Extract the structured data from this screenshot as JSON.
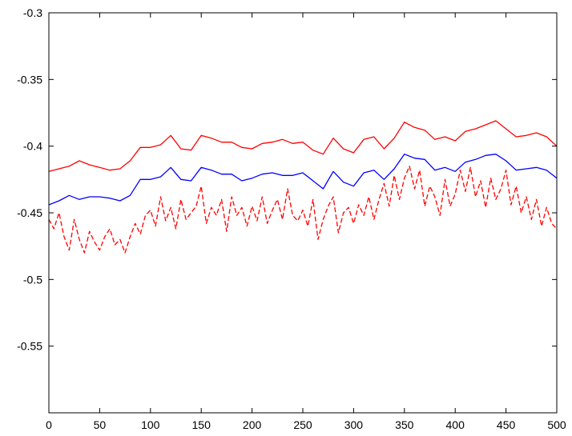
{
  "chart_data": {
    "type": "line",
    "title": "",
    "xlabel": "",
    "ylabel": "",
    "xlim": [
      0,
      500
    ],
    "ylim": [
      -0.6,
      -0.3
    ],
    "x_ticks": [
      0,
      50,
      100,
      150,
      200,
      250,
      300,
      350,
      400,
      450,
      500
    ],
    "y_ticks": [
      -0.3,
      -0.35,
      -0.4,
      -0.45,
      -0.5,
      -0.55
    ],
    "x_tick_labels": [
      "0",
      "50",
      "100",
      "150",
      "200",
      "250",
      "300",
      "350",
      "400",
      "450",
      "500"
    ],
    "y_tick_labels": [
      "-0.3",
      "-0.35",
      "-0.4",
      "-0.45",
      "-0.5",
      "-0.55"
    ],
    "grid": false,
    "series": [
      {
        "color": "#ff0000",
        "style": "solid",
        "x": [
          0,
          10,
          20,
          30,
          40,
          50,
          60,
          70,
          80,
          90,
          100,
          110,
          120,
          130,
          140,
          150,
          160,
          170,
          180,
          190,
          200,
          210,
          220,
          230,
          240,
          250,
          260,
          270,
          280,
          290,
          300,
          310,
          320,
          330,
          340,
          350,
          360,
          370,
          380,
          390,
          400,
          410,
          420,
          430,
          440,
          450,
          460,
          470,
          480,
          490,
          500
        ],
        "values": [
          -0.419,
          -0.417,
          -0.415,
          -0.411,
          -0.414,
          -0.416,
          -0.418,
          -0.417,
          -0.411,
          -0.401,
          -0.401,
          -0.399,
          -0.392,
          -0.402,
          -0.403,
          -0.392,
          -0.394,
          -0.397,
          -0.397,
          -0.401,
          -0.402,
          -0.398,
          -0.397,
          -0.395,
          -0.398,
          -0.397,
          -0.403,
          -0.406,
          -0.394,
          -0.402,
          -0.405,
          -0.395,
          -0.393,
          -0.402,
          -0.394,
          -0.382,
          -0.386,
          -0.388,
          -0.395,
          -0.393,
          -0.396,
          -0.389,
          -0.387,
          -0.384,
          -0.381,
          -0.387,
          -0.393,
          -0.392,
          -0.39,
          -0.393,
          -0.4
        ]
      },
      {
        "color": "#0000ff",
        "style": "solid",
        "x": [
          0,
          10,
          20,
          30,
          40,
          50,
          60,
          70,
          80,
          90,
          100,
          110,
          120,
          130,
          140,
          150,
          160,
          170,
          180,
          190,
          200,
          210,
          220,
          230,
          240,
          250,
          260,
          270,
          280,
          290,
          300,
          310,
          320,
          330,
          340,
          350,
          360,
          370,
          380,
          390,
          400,
          410,
          420,
          430,
          440,
          450,
          460,
          470,
          480,
          490,
          500
        ],
        "values": [
          -0.444,
          -0.441,
          -0.437,
          -0.44,
          -0.438,
          -0.438,
          -0.439,
          -0.441,
          -0.437,
          -0.425,
          -0.425,
          -0.423,
          -0.416,
          -0.425,
          -0.426,
          -0.416,
          -0.418,
          -0.421,
          -0.421,
          -0.426,
          -0.424,
          -0.421,
          -0.42,
          -0.422,
          -0.422,
          -0.42,
          -0.426,
          -0.432,
          -0.419,
          -0.427,
          -0.43,
          -0.42,
          -0.418,
          -0.425,
          -0.417,
          -0.406,
          -0.409,
          -0.41,
          -0.418,
          -0.416,
          -0.419,
          -0.412,
          -0.41,
          -0.407,
          -0.406,
          -0.411,
          -0.418,
          -0.417,
          -0.416,
          -0.418,
          -0.424
        ]
      },
      {
        "color": "#ff0000",
        "style": "dashed",
        "x": [
          0,
          5,
          10,
          15,
          20,
          25,
          30,
          35,
          40,
          45,
          50,
          55,
          60,
          65,
          70,
          75,
          80,
          85,
          90,
          95,
          100,
          105,
          110,
          115,
          120,
          125,
          130,
          135,
          140,
          145,
          150,
          155,
          160,
          165,
          170,
          175,
          180,
          185,
          190,
          195,
          200,
          205,
          210,
          215,
          220,
          225,
          230,
          235,
          240,
          245,
          250,
          255,
          260,
          265,
          270,
          275,
          280,
          285,
          290,
          295,
          300,
          305,
          310,
          315,
          320,
          325,
          330,
          335,
          340,
          345,
          350,
          355,
          360,
          365,
          370,
          375,
          380,
          385,
          390,
          395,
          400,
          405,
          410,
          415,
          420,
          425,
          430,
          435,
          440,
          445,
          450,
          455,
          460,
          465,
          470,
          475,
          480,
          485,
          490,
          495,
          500
        ],
        "values": [
          -0.455,
          -0.462,
          -0.45,
          -0.468,
          -0.478,
          -0.455,
          -0.47,
          -0.48,
          -0.464,
          -0.472,
          -0.478,
          -0.468,
          -0.462,
          -0.474,
          -0.47,
          -0.48,
          -0.468,
          -0.458,
          -0.466,
          -0.452,
          -0.448,
          -0.46,
          -0.438,
          -0.456,
          -0.446,
          -0.462,
          -0.44,
          -0.455,
          -0.45,
          -0.445,
          -0.43,
          -0.458,
          -0.446,
          -0.452,
          -0.44,
          -0.464,
          -0.438,
          -0.452,
          -0.446,
          -0.46,
          -0.445,
          -0.456,
          -0.438,
          -0.458,
          -0.448,
          -0.44,
          -0.455,
          -0.432,
          -0.452,
          -0.456,
          -0.448,
          -0.46,
          -0.44,
          -0.47,
          -0.455,
          -0.445,
          -0.438,
          -0.465,
          -0.45,
          -0.446,
          -0.458,
          -0.444,
          -0.452,
          -0.438,
          -0.455,
          -0.44,
          -0.428,
          -0.445,
          -0.422,
          -0.44,
          -0.424,
          -0.415,
          -0.432,
          -0.418,
          -0.445,
          -0.43,
          -0.438,
          -0.452,
          -0.425,
          -0.445,
          -0.436,
          -0.418,
          -0.434,
          -0.416,
          -0.438,
          -0.426,
          -0.446,
          -0.424,
          -0.44,
          -0.432,
          -0.418,
          -0.444,
          -0.43,
          -0.45,
          -0.438,
          -0.455,
          -0.44,
          -0.46,
          -0.446,
          -0.458,
          -0.462
        ]
      }
    ]
  }
}
